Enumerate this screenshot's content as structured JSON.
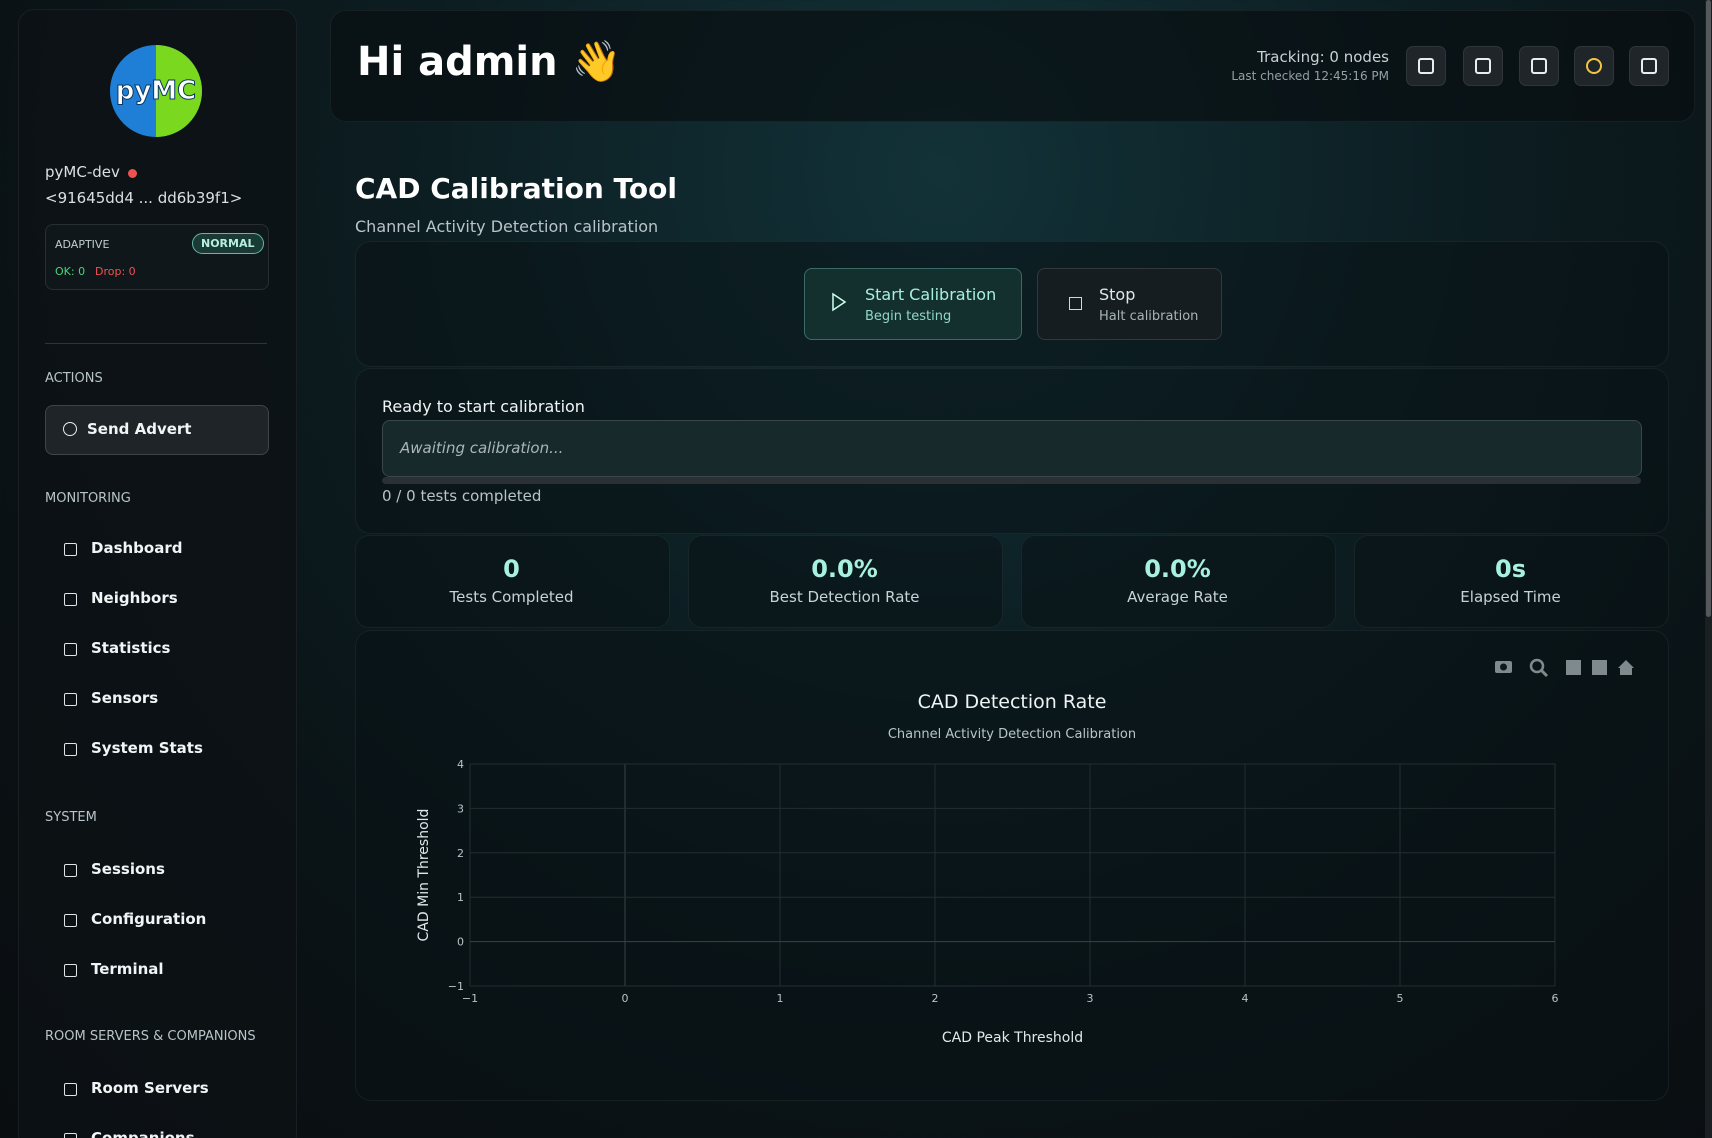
{
  "sidebar": {
    "node_name": "pyMC-dev",
    "node_id": "<91645dd4 ... dd6b39f1>",
    "mode": {
      "label": "ADAPTIVE",
      "badge": "NORMAL",
      "ok": "OK: 0",
      "drop": "Drop: 0"
    },
    "sections": [
      {
        "title": "ACTIONS",
        "items": [
          "Send Advert"
        ]
      },
      {
        "title": "MONITORING",
        "items": [
          "Dashboard",
          "Neighbors",
          "Statistics",
          "Sensors",
          "System Stats"
        ]
      },
      {
        "title": "SYSTEM",
        "items": [
          "Sessions",
          "Configuration",
          "Terminal"
        ]
      },
      {
        "title": "ROOM SERVERS & COMPANIONS",
        "items": [
          "Room Servers",
          "Companions"
        ]
      }
    ]
  },
  "header": {
    "greeting": "Hi admin 👋",
    "tracking": "Tracking: 0 nodes",
    "last_checked": "Last checked 12:45:16 PM"
  },
  "page": {
    "title": "CAD Calibration Tool",
    "subtitle": "Channel Activity Detection calibration"
  },
  "controls": [
    {
      "label": "Start Calibration",
      "hint": "Begin testing"
    },
    {
      "label": "Stop",
      "hint": "Halt calibration"
    }
  ],
  "progress": {
    "status": "Ready to start calibration",
    "placeholder": "Awaiting calibration...",
    "count": "0 / 0 tests completed"
  },
  "stats": [
    {
      "value": "0",
      "label": "Tests Completed"
    },
    {
      "value": "0.0%",
      "label": "Best Detection Rate"
    },
    {
      "value": "0.0%",
      "label": "Average Rate"
    },
    {
      "value": "0s",
      "label": "Elapsed Time"
    }
  ],
  "chart": {
    "type": "scatter",
    "title": "CAD Detection Rate",
    "subtitle": "Channel Activity Detection Calibration",
    "x_label": "CAD Peak Threshold",
    "y_label": "CAD Min Threshold",
    "xlim": [
      -1,
      6
    ],
    "xticks": [
      {
        "value": -1,
        "label": "−1"
      },
      0,
      1,
      2,
      3,
      4,
      5,
      6
    ],
    "ylim": [
      -1,
      4
    ],
    "yticks": [
      {
        "value": -1,
        "label": "−1"
      },
      0,
      1,
      2,
      3,
      4
    ],
    "grid": true
  }
}
